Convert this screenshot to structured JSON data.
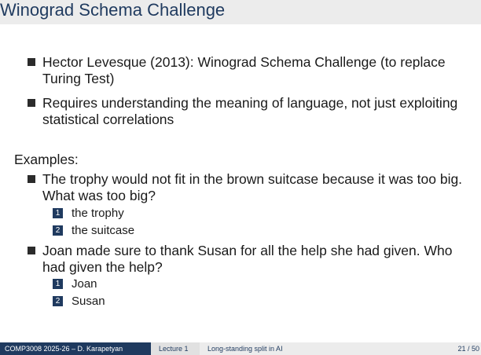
{
  "slide": {
    "title": "Winograd Schema Challenge",
    "bullets": [
      "Hector Levesque (2013): Winograd Schema Challenge (to replace Turing Test)",
      "Requires understanding the meaning of language, not just exploiting statistical correlations"
    ],
    "examples_label": "Examples:",
    "examples": [
      {
        "question": "The trophy would not fit in the brown suitcase because it was too big. What was too big?",
        "options": [
          {
            "num": "1",
            "text": "the trophy"
          },
          {
            "num": "2",
            "text": "the suitcase"
          }
        ]
      },
      {
        "question": "Joan made sure to thank Susan for all the help she had given. Who had given the help?",
        "options": [
          {
            "num": "1",
            "text": "Joan"
          },
          {
            "num": "2",
            "text": "Susan"
          }
        ]
      }
    ]
  },
  "footer": {
    "course": "COMP3008 2025-26 – D. Karapetyan",
    "lecture": "Lecture 1",
    "section": "Long-standing split in AI",
    "page": "21 / 50"
  },
  "colors": {
    "title": "#1f3a5f",
    "footer_dark": "#1f3a5f",
    "titlebar_bg": "#ececec"
  }
}
